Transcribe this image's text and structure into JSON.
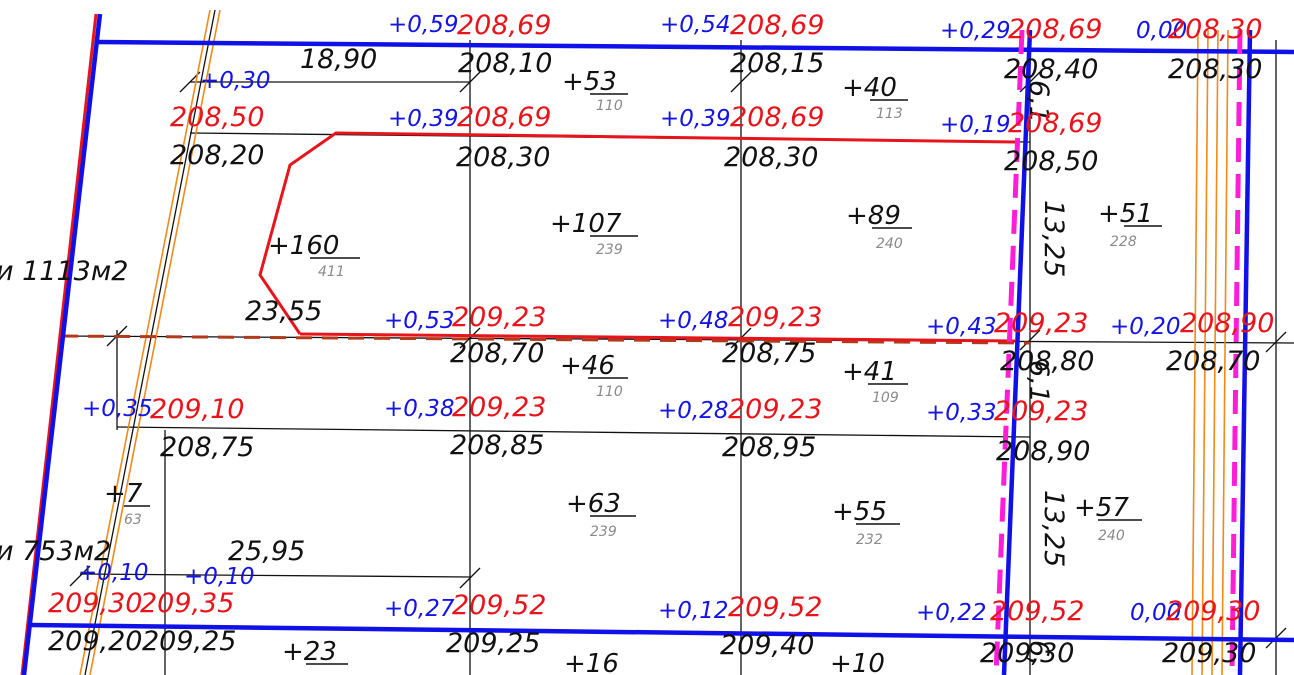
{
  "drawing": {
    "colors": {
      "boundary_blue": "#1010e8",
      "red_contour": "#e8141b",
      "grid_black": "#111111",
      "orange_road": "#f08a1a",
      "magenta_dashed": "#ff1dd8",
      "brown_dashed": "#b03a1a"
    },
    "area_labels": {
      "upper": "и  1113м2",
      "lower": "и  753м2"
    },
    "points": [
      {
        "work": "+0,59",
        "design": "208,69",
        "natural": "208,10"
      },
      {
        "work": "+0,54",
        "design": "208,69",
        "natural": "208,15"
      },
      {
        "work": "+0,29",
        "design": "208,69",
        "natural": "208,40"
      },
      {
        "work": "0,00",
        "design": "208,30",
        "natural": "208,30"
      },
      {
        "work": "+0,30",
        "design": "208,50",
        "natural": "208,20"
      },
      {
        "work": "+0,39",
        "design": "208,69",
        "natural": "208,30"
      },
      {
        "work": "+0,39",
        "design": "208,69",
        "natural": "208,30"
      },
      {
        "work": "+0,19",
        "design": "208,69",
        "natural": "208,50"
      },
      {
        "work": "+0,53",
        "design": "209,23",
        "natural": "208,70"
      },
      {
        "work": "+0,48",
        "design": "209,23",
        "natural": "208,75"
      },
      {
        "work": "+0,43",
        "design": "209,23",
        "natural": "208,80"
      },
      {
        "work": "+0,20",
        "design": "208,90",
        "natural": "208,70"
      },
      {
        "work": "+0,35",
        "design": "209,10",
        "natural": "208,75"
      },
      {
        "work": "+0,38",
        "design": "209,23",
        "natural": "208,85"
      },
      {
        "work": "+0,28",
        "design": "209,23",
        "natural": "208,95"
      },
      {
        "work": "+0,33",
        "design": "209,23",
        "natural": "208,90"
      },
      {
        "work": "+0,10",
        "design": "209,30",
        "natural": "209,20"
      },
      {
        "work": "+0,10",
        "design": "209,35",
        "natural": "209,25"
      },
      {
        "work": "+0,27",
        "design": "209,52",
        "natural": "209,25"
      },
      {
        "work": "+0,12",
        "design": "209,52",
        "natural": "209,40"
      },
      {
        "work": "+0,22",
        "design": "209,52",
        "natural": "209,30"
      },
      {
        "work": "0,00",
        "design": "209,30",
        "natural": "209,30"
      }
    ],
    "volumes": [
      {
        "value": "+53",
        "area": "110"
      },
      {
        "value": "+40",
        "area": "113"
      },
      {
        "value": "+160",
        "area": "411"
      },
      {
        "value": "+107",
        "area": "239"
      },
      {
        "value": "+89",
        "area": "240"
      },
      {
        "value": "+51",
        "area": "228"
      },
      {
        "value": "+46",
        "area": "110"
      },
      {
        "value": "+41",
        "area": "109"
      },
      {
        "value": "+7",
        "area": "63"
      },
      {
        "value": "+63",
        "area": "239"
      },
      {
        "value": "+55",
        "area": "232"
      },
      {
        "value": "+57",
        "area": "240"
      },
      {
        "value": "+23",
        "area": ""
      },
      {
        "value": "+16",
        "area": ""
      },
      {
        "value": "+10",
        "area": ""
      }
    ],
    "dimensions": [
      "18,90",
      "23,55",
      "25,95",
      "13,25",
      "13,25",
      "6,1",
      "6,1",
      "6,"
    ]
  }
}
